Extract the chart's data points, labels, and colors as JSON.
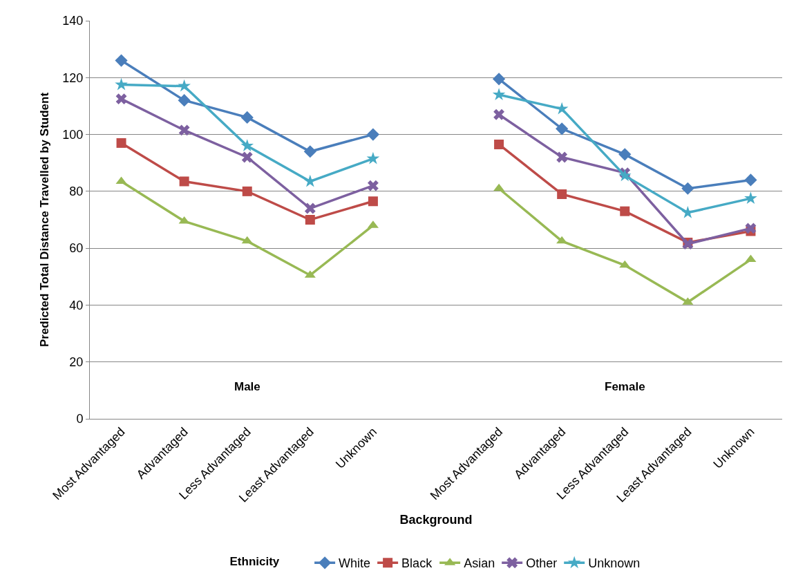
{
  "chart_data": {
    "type": "line",
    "xlabel": "Background",
    "ylabel": "Predicted Total Distance Travelled by Student",
    "legend_title": "Ethnicity",
    "categories": [
      "Most Advantaged",
      "Advantaged",
      "Less Advantaged",
      "Least Advantaged",
      "Unknown",
      null,
      "Most Advantaged",
      "Advantaged",
      "Less Advantaged",
      "Least Advantaged",
      "Unknown"
    ],
    "annotations": [
      "Male",
      "Female"
    ],
    "ylim": [
      0,
      140
    ],
    "yticks": [
      0,
      20,
      40,
      60,
      80,
      100,
      120,
      140
    ],
    "grid": "y",
    "legend": "bottom",
    "series": [
      {
        "name": "White",
        "color": "#4a7ebb",
        "marker": "diamond",
        "values": [
          126,
          112,
          106,
          94,
          100,
          null,
          119.5,
          102,
          93,
          81,
          84
        ]
      },
      {
        "name": "Black",
        "color": "#be4b48",
        "marker": "square",
        "values": [
          97,
          83.5,
          80,
          70,
          76.5,
          null,
          96.5,
          79,
          73,
          62,
          66
        ]
      },
      {
        "name": "Asian",
        "color": "#98b954",
        "marker": "triangle",
        "values": [
          83.5,
          69.5,
          62.5,
          50.5,
          68,
          null,
          81,
          62.5,
          54,
          41,
          56
        ]
      },
      {
        "name": "Other",
        "color": "#7d60a0",
        "marker": "cross",
        "values": [
          112.5,
          101.5,
          92,
          74,
          82,
          null,
          107,
          92,
          86.5,
          61.5,
          67
        ]
      },
      {
        "name": "Unknown",
        "color": "#46aac5",
        "marker": "star",
        "values": [
          117.5,
          117,
          96,
          83.5,
          91.5,
          null,
          114,
          109,
          85.5,
          72.5,
          77.5
        ]
      }
    ]
  }
}
